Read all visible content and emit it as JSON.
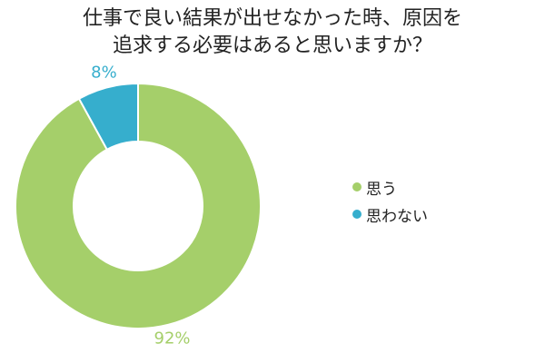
{
  "chart_data": {
    "type": "pie",
    "title": "仕事で良い結果が出せなかった時、原因を追求する必要はあると思いますか？",
    "categories": [
      "思う",
      "思わない"
    ],
    "values": [
      92,
      8
    ],
    "value_labels": [
      "92%",
      "8%"
    ],
    "colors": [
      "#a5cf6a",
      "#36aecd"
    ],
    "donut": true,
    "legend_position": "right"
  }
}
